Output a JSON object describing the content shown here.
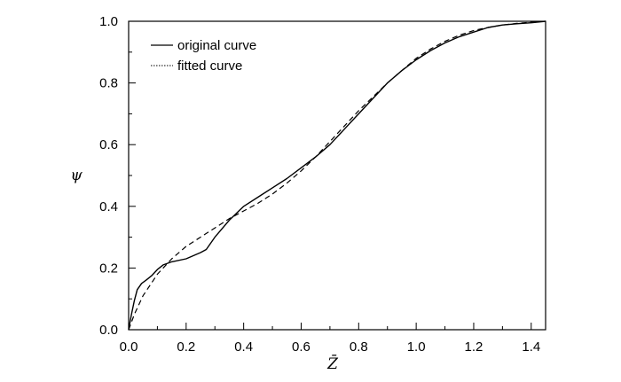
{
  "chart_data": {
    "type": "line",
    "xlabel": "Z̄",
    "ylabel": "ψ",
    "xlim": [
      0.0,
      1.45
    ],
    "ylim": [
      0.0,
      1.0
    ],
    "xticks": [
      "0.0",
      "0.2",
      "0.4",
      "0.6",
      "0.8",
      "1.0",
      "1.2",
      "1.4"
    ],
    "yticks": [
      "0.0",
      "0.2",
      "0.4",
      "0.6",
      "0.8",
      "1.0"
    ],
    "legend_position": "top-left",
    "grid": false,
    "series": [
      {
        "name": "original curve",
        "style": "solid",
        "x": [
          0.0,
          0.01,
          0.02,
          0.03,
          0.045,
          0.06,
          0.08,
          0.1,
          0.12,
          0.15,
          0.2,
          0.25,
          0.27,
          0.3,
          0.35,
          0.4,
          0.45,
          0.5,
          0.55,
          0.6,
          0.65,
          0.7,
          0.75,
          0.8,
          0.85,
          0.9,
          0.95,
          1.0,
          1.05,
          1.1,
          1.15,
          1.2,
          1.25,
          1.3,
          1.35,
          1.4,
          1.45
        ],
        "y": [
          0.0,
          0.05,
          0.095,
          0.13,
          0.15,
          0.16,
          0.175,
          0.195,
          0.21,
          0.22,
          0.23,
          0.25,
          0.26,
          0.3,
          0.355,
          0.4,
          0.43,
          0.46,
          0.49,
          0.525,
          0.56,
          0.6,
          0.65,
          0.7,
          0.75,
          0.8,
          0.84,
          0.875,
          0.905,
          0.93,
          0.95,
          0.965,
          0.98,
          0.988,
          0.992,
          0.995,
          1.0
        ]
      },
      {
        "name": "fitted curve",
        "style": "dashed",
        "x": [
          0.0,
          0.02,
          0.05,
          0.1,
          0.15,
          0.2,
          0.25,
          0.3,
          0.35,
          0.4,
          0.45,
          0.5,
          0.55,
          0.6,
          0.65,
          0.7,
          0.75,
          0.8,
          0.85,
          0.9,
          0.95,
          1.0,
          1.05,
          1.1,
          1.15,
          1.2,
          1.25,
          1.3,
          1.35,
          1.4,
          1.45
        ],
        "y": [
          0.0,
          0.05,
          0.11,
          0.18,
          0.23,
          0.27,
          0.3,
          0.33,
          0.36,
          0.385,
          0.41,
          0.44,
          0.475,
          0.515,
          0.56,
          0.61,
          0.66,
          0.71,
          0.755,
          0.8,
          0.84,
          0.88,
          0.91,
          0.935,
          0.955,
          0.97,
          0.98,
          0.988,
          0.993,
          0.997,
          1.0
        ]
      }
    ]
  }
}
